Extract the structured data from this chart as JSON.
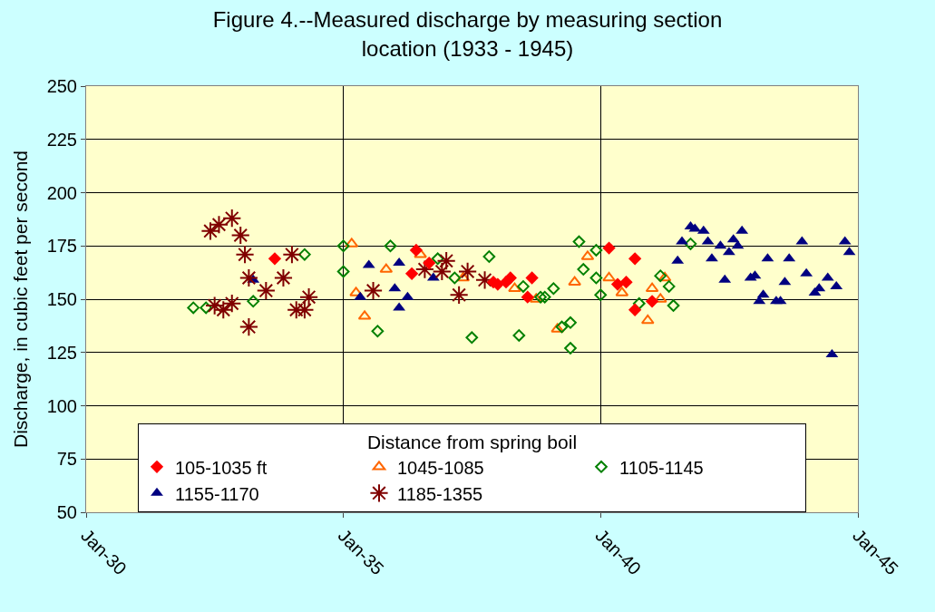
{
  "chart_data": {
    "type": "scatter",
    "title": "Figure 4.--Measured discharge by measuring section location (1933 - 1945)",
    "ylabel": "Discharge, in cubic feet per second",
    "legend_title": "Distance from spring boil",
    "xlim": [
      "1930-01-01",
      "1945-01-01"
    ],
    "xticks": [
      {
        "value": "1930-01-01",
        "label": "Jan-30"
      },
      {
        "value": "1935-01-01",
        "label": "Jan-35"
      },
      {
        "value": "1940-01-01",
        "label": "Jan-40"
      },
      {
        "value": "1945-01-01",
        "label": "Jan-45"
      }
    ],
    "ylim": [
      50,
      250
    ],
    "yticks": [
      50,
      75,
      100,
      125,
      150,
      175,
      200,
      225,
      250
    ],
    "grid": true,
    "legend": "bottom",
    "series": [
      {
        "name": "105-1035 ft",
        "color": "#ff0000",
        "marker": "diamond",
        "x": [
          "1933-09",
          "1936-06",
          "1936-05",
          "1936-09",
          "1937-12",
          "1938-01",
          "1938-03",
          "1938-04",
          "1938-09",
          "1938-08",
          "1940-03",
          "1940-09",
          "1940-05",
          "1940-07",
          "1940-09",
          "1941-01"
        ],
        "values": [
          169,
          173,
          162,
          167,
          158,
          157,
          158,
          160,
          160,
          151,
          174,
          169,
          157,
          158,
          145,
          149
        ]
      },
      {
        "name": "1045-1085",
        "color": "#ff6600",
        "marker": "triangle-open",
        "x": [
          "1935-03",
          "1935-11",
          "1935-04",
          "1935-06",
          "1936-07",
          "1937-05",
          "1938-05",
          "1938-10",
          "1939-03",
          "1939-07",
          "1939-10",
          "1940-03",
          "1940-06",
          "1941-01",
          "1941-03",
          "1940-12",
          "1941-04"
        ],
        "values": [
          176,
          164,
          153,
          142,
          171,
          160,
          155,
          150,
          136,
          158,
          170,
          160,
          153,
          155,
          150,
          140,
          160
        ]
      },
      {
        "name": "1105-1145",
        "color": "#008000",
        "marker": "diamond-open",
        "x": [
          "1932-02",
          "1932-05",
          "1933-04",
          "1934-04",
          "1935-01",
          "1935-01",
          "1935-12",
          "1935-09",
          "1936-11",
          "1937-03",
          "1937-11",
          "1937-07",
          "1938-06",
          "1938-07",
          "1938-11",
          "1938-12",
          "1939-02",
          "1939-04",
          "1939-06",
          "1939-06",
          "1939-08",
          "1939-09",
          "1939-12",
          "1939-12",
          "1940-01",
          "1940-10",
          "1941-03",
          "1941-05",
          "1941-06",
          "1941-10"
        ],
        "values": [
          146,
          146,
          149,
          171,
          175,
          163,
          175,
          135,
          169,
          160,
          170,
          132,
          133,
          156,
          151,
          151,
          155,
          137,
          139,
          127,
          177,
          164,
          173,
          160,
          152,
          148,
          161,
          156,
          147,
          176
        ]
      },
      {
        "name": "1155-1170",
        "color": "#000080",
        "marker": "triangle",
        "x": [
          "1933-04",
          "1935-07",
          "1936-02",
          "1935-05",
          "1936-01",
          "1936-04",
          "1936-02",
          "1936-10",
          "1941-07",
          "1941-08",
          "1941-10",
          "1941-11",
          "1942-01",
          "1942-02",
          "1942-03",
          "1942-05",
          "1942-06",
          "1942-07",
          "1942-08",
          "1942-09",
          "1942-10",
          "1942-12",
          "1943-01",
          "1943-02",
          "1943-03",
          "1943-04",
          "1943-06",
          "1943-07",
          "1943-08",
          "1943-09",
          "1943-12",
          "1944-01",
          "1944-03",
          "1944-04",
          "1944-06",
          "1944-07",
          "1944-08",
          "1944-10",
          "1944-11"
        ],
        "values": [
          159,
          166,
          167,
          151,
          155,
          151,
          146,
          160,
          168,
          177,
          184,
          183,
          182,
          177,
          169,
          175,
          159,
          172,
          178,
          175,
          182,
          160,
          161,
          149,
          152,
          169,
          149,
          149,
          158,
          169,
          177,
          162,
          153,
          155,
          160,
          124,
          156,
          177,
          172
        ]
      },
      {
        "name": "1185-1355",
        "color": "#800000",
        "marker": "cross",
        "x": [
          "1932-06",
          "1932-08",
          "1932-11",
          "1933-01",
          "1933-02",
          "1933-03",
          "1932-07",
          "1932-09",
          "1932-11",
          "1933-03",
          "1933-07",
          "1933-11",
          "1934-01",
          "1934-02",
          "1934-04",
          "1934-05",
          "1935-08",
          "1936-08",
          "1937-01",
          "1936-12",
          "1937-04",
          "1937-06",
          "1937-10"
        ],
        "values": [
          182,
          185,
          188,
          180,
          171,
          160,
          147,
          145,
          148,
          137,
          154,
          160,
          171,
          145,
          145,
          151,
          154,
          164,
          168,
          163,
          152,
          163,
          159
        ]
      }
    ]
  }
}
